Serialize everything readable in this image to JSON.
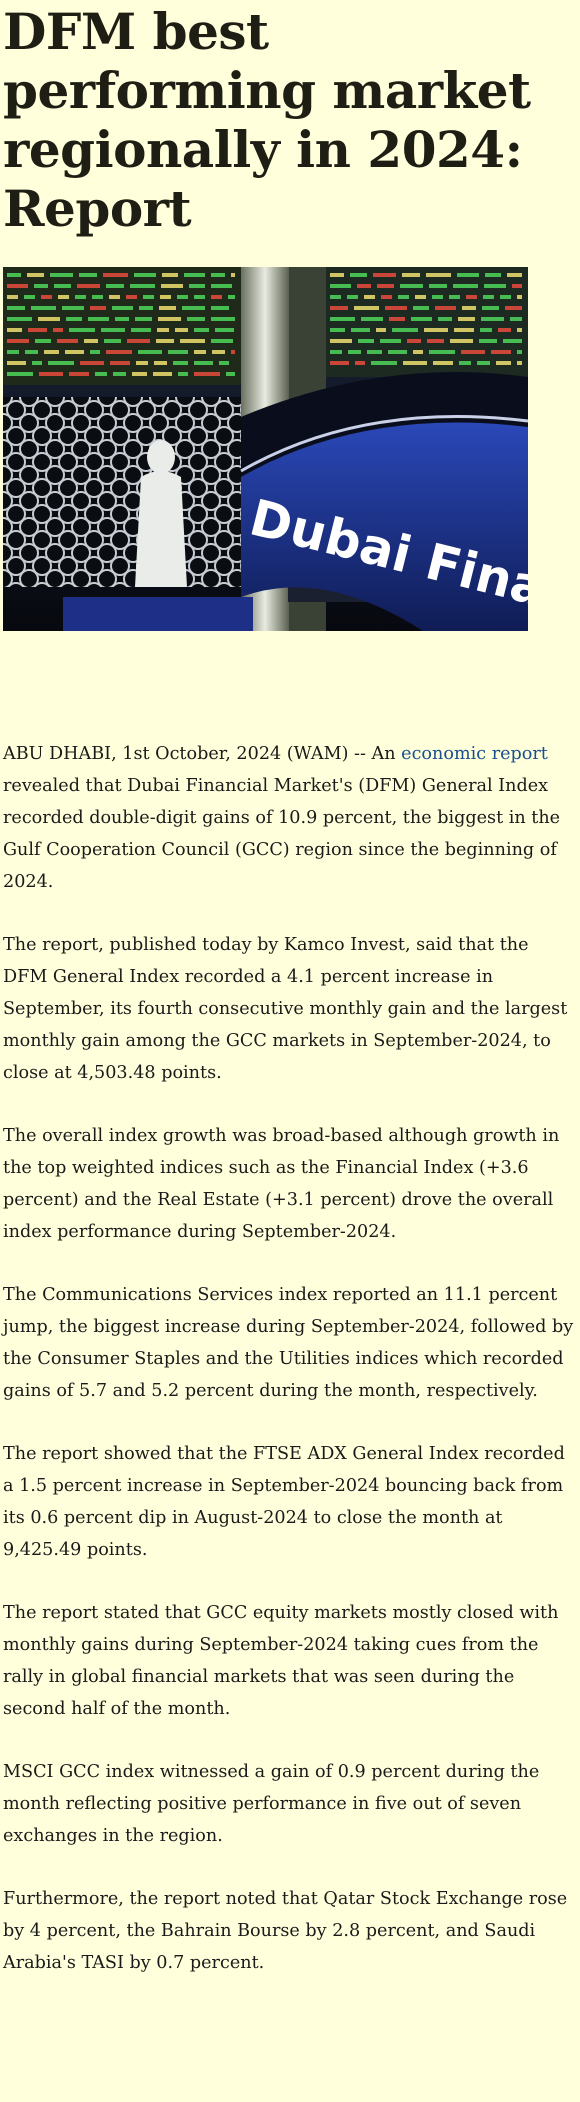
{
  "headline": "DFM best performing market regionally in 2024: Report",
  "hero_image": {
    "sign_text": "Dubai Financial"
  },
  "article": {
    "p1_before_link": "ABU DHABI, 1st October, 2024 (WAM) -- An ",
    "p1_link": "economic report",
    "p1_after_link": " revealed that Dubai Financial Market's (DFM) General Index recorded double-digit gains of 10.9 percent, the biggest in the Gulf Cooperation Council (GCC) region since the beginning of 2024.",
    "p2": "The report, published today by Kamco Invest, said that the DFM General Index recorded a 4.1 percent increase in September, its fourth consecutive monthly gain and the largest monthly gain among the GCC markets in September-2024, to close at 4,503.48 points.",
    "p3": "The overall index growth was broad-based although growth in the top weighted indices such as the Financial Index (+3.6 percent) and the Real Estate (+3.1 percent) drove the overall index performance during September-2024.",
    "p4": "The Communications Services index reported an 11.1 percent jump, the biggest increase during September-2024, followed by the Consumer Staples and the Utilities indices which recorded gains of 5.7 and 5.2 percent during the month, respectively.",
    "p5": "The report showed that the FTSE ADX General Index recorded a 1.5 percent increase in September-2024 bouncing back from its 0.6 percent dip in August-2024 to close the month at 9,425.49 points.",
    "p6": "The report stated that GCC equity markets mostly closed with monthly gains during September-2024 taking cues from the rally in global financial markets that was seen during the second half of the month.",
    "p7": "MSCI GCC index witnessed a gain of 0.9 percent during the month reflecting positive performance in five out of seven exchanges in the region.",
    "p8": "Furthermore, the report noted that Qatar Stock Exchange rose by 4 percent, the Bahrain Bourse by 2.8 percent, and Saudi Arabia's TASI by 0.7 percent."
  },
  "colors": {
    "page_background": "#ffffdc",
    "link": "#1a4f8f",
    "ticker_green": "#4fd65a",
    "ticker_board": "#1f2a1a",
    "sign_blue": "#1b2e7a"
  }
}
